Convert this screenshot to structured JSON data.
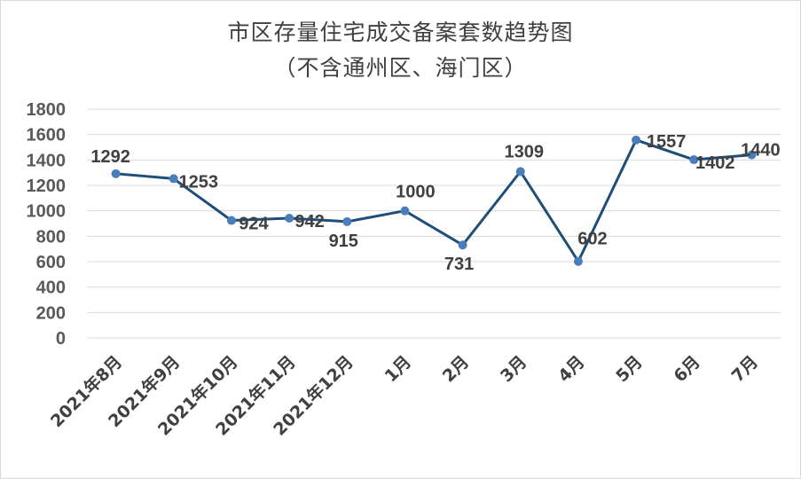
{
  "chart_data": {
    "type": "line",
    "title": "市区存量住宅成交备案套数趋势图",
    "subtitle": "（不含通州区、海门区）",
    "xlabel": "",
    "ylabel": "",
    "categories": [
      "2021年8月",
      "2021年9月",
      "2021年10月",
      "2021年11月",
      "2021年12月",
      "1月",
      "2月",
      "3月",
      "4月",
      "5月",
      "6月",
      "7月"
    ],
    "series": [
      {
        "values": [
          1292,
          1253,
          924,
          942,
          915,
          1000,
          731,
          1309,
          602,
          1557,
          1402,
          1440
        ]
      }
    ],
    "ylim": [
      0,
      1800
    ],
    "yticks": [
      0,
      200,
      400,
      600,
      800,
      1000,
      1200,
      1400,
      1600,
      1800
    ],
    "grid": true,
    "legend": "none",
    "colors": {
      "line": "#1f4e79",
      "marker": "#4a7ebb",
      "grid": "#d9d9d9"
    }
  }
}
